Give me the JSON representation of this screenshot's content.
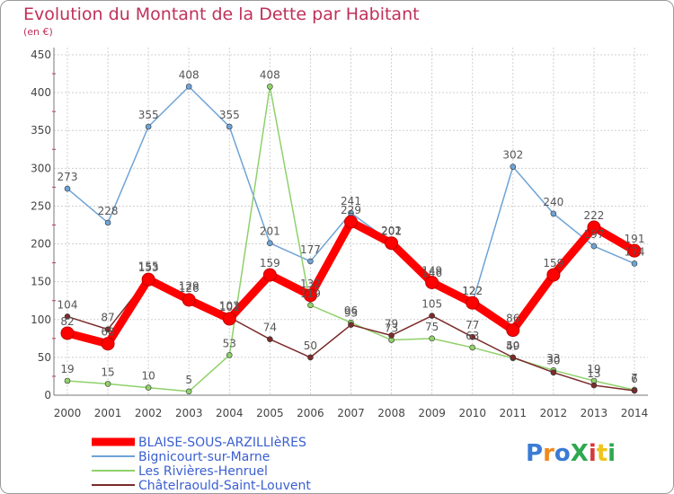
{
  "title": "Evolution du Montant de la Dette par Habitant",
  "subtitle": "(en €)",
  "brand": {
    "text": "ProXiti",
    "letter_colors": [
      "#3a7bd5",
      "#f08a1c",
      "#3a7bd5",
      "#2fa84f",
      "#d43a3a",
      "#f0c419",
      "#2fa84f"
    ]
  },
  "chart_data": {
    "type": "line",
    "title": "Evolution du Montant de la Dette par Habitant",
    "ylabel": "(en €)",
    "xlabel": "",
    "x": [
      "2000",
      "2001",
      "2002",
      "2003",
      "2004",
      "2005",
      "2006",
      "2007",
      "2008",
      "2009",
      "2010",
      "2011",
      "2012",
      "2013",
      "2014"
    ],
    "ylim": [
      0,
      450
    ],
    "yticks": [
      0,
      50,
      100,
      150,
      200,
      250,
      300,
      350,
      400,
      450
    ],
    "grid": true,
    "legend_position": "bottom-left",
    "series": [
      {
        "name": "BLAISE-SOUS-ARZILLIèRES",
        "color": "#ff0000",
        "values": [
          82,
          68,
          153,
          126,
          101,
          159,
          132,
          229,
          201,
          149,
          122,
          86,
          159,
          222,
          191
        ]
      },
      {
        "name": "Bignicourt-sur-Marne",
        "color": "#6fa3d6",
        "values": [
          273,
          228,
          355,
          408,
          355,
          201,
          177,
          241,
          202,
          146,
          122,
          302,
          240,
          197,
          174
        ]
      },
      {
        "name": "Les Rivières-Henruel",
        "color": "#8fd16a",
        "values": [
          19,
          15,
          10,
          5,
          53,
          408,
          119,
          96,
          73,
          75,
          63,
          49,
          33,
          19,
          7
        ]
      },
      {
        "name": "Châtelraould-Saint-Louvent",
        "color": "#7b2b2b",
        "values": [
          104,
          87,
          155,
          129,
          103,
          74,
          50,
          93,
          79,
          105,
          77,
          50,
          30,
          13,
          6
        ]
      }
    ],
    "point_labels": [
      [
        "82",
        "68",
        "153",
        "126",
        "101",
        "159",
        "132",
        "229",
        "201",
        "149",
        "122",
        "86",
        "159",
        "222",
        "191"
      ],
      [
        "273",
        "228",
        "355",
        "408",
        "355",
        "201",
        "177",
        "241",
        "202",
        "146",
        "122",
        "302",
        "240",
        "197",
        "174"
      ],
      [
        "19",
        "15",
        "10",
        "5",
        "53",
        "408",
        "119",
        "96",
        "73",
        "75",
        "63",
        "49",
        "33",
        "19",
        "7"
      ],
      [
        "104",
        "87",
        "155",
        "129",
        "103",
        "74",
        "50",
        "93",
        "79",
        "105",
        "77",
        "50",
        "30",
        "13",
        "6"
      ]
    ]
  }
}
